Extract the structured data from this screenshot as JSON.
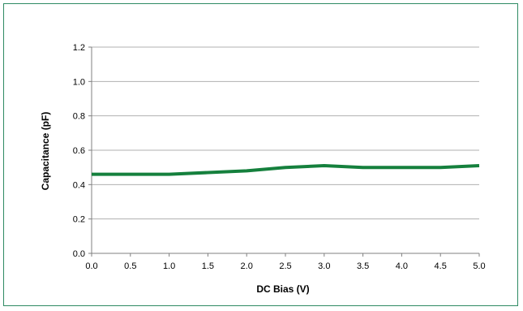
{
  "chart_data": {
    "type": "line",
    "title": "",
    "xlabel": "DC Bias (V)",
    "ylabel": "Capacitance (pF)",
    "xlim": [
      0,
      5
    ],
    "ylim": [
      0,
      1.2
    ],
    "x_ticks": [
      "0.0",
      "0.5",
      "1.0",
      "1.5",
      "2.0",
      "2.5",
      "3.0",
      "3.5",
      "4.0",
      "4.5",
      "5.0"
    ],
    "y_ticks": [
      "0.0",
      "0.2",
      "0.4",
      "0.6",
      "0.8",
      "1.0",
      "1.2"
    ],
    "grid": true,
    "legend": false,
    "series": [
      {
        "color": "#15803d",
        "x": [
          0.0,
          0.5,
          1.0,
          1.5,
          2.0,
          2.5,
          3.0,
          3.5,
          4.0,
          4.5,
          5.0
        ],
        "y": [
          0.46,
          0.46,
          0.46,
          0.47,
          0.48,
          0.5,
          0.51,
          0.5,
          0.5,
          0.5,
          0.51
        ]
      }
    ]
  },
  "colors": {
    "frame_border": "#2e8a63",
    "grid": "#b0b0b0",
    "axis": "#808080",
    "series_line": "#15803d"
  }
}
